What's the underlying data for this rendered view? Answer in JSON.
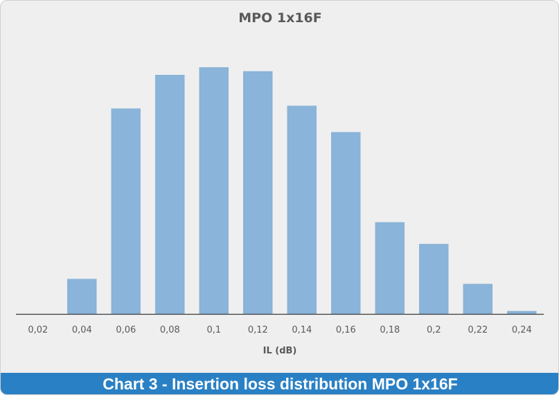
{
  "chart_data": {
    "type": "bar",
    "title": "MPO 1x16F",
    "xlabel": "IL (dB)",
    "ylabel": "",
    "categories": [
      "0,02",
      "0,04",
      "0,06",
      "0,08",
      "0,1",
      "0,12",
      "0,14",
      "0,16",
      "0,18",
      "0,2",
      "0,22",
      "0,24"
    ],
    "values": [
      0,
      14.2,
      83.3,
      96.9,
      100,
      98.4,
      84.4,
      73.7,
      37.2,
      28.4,
      12.2,
      1.2
    ],
    "ylim": [
      0,
      100
    ],
    "grid": false,
    "bar_color": "#8ab4d9"
  },
  "caption": "Chart 3 - Insertion loss distribution MPO 1x16F",
  "colors": {
    "background": "#efefef",
    "caption_bar": "#2a80c4",
    "axis_line": "#3a3a3a"
  }
}
